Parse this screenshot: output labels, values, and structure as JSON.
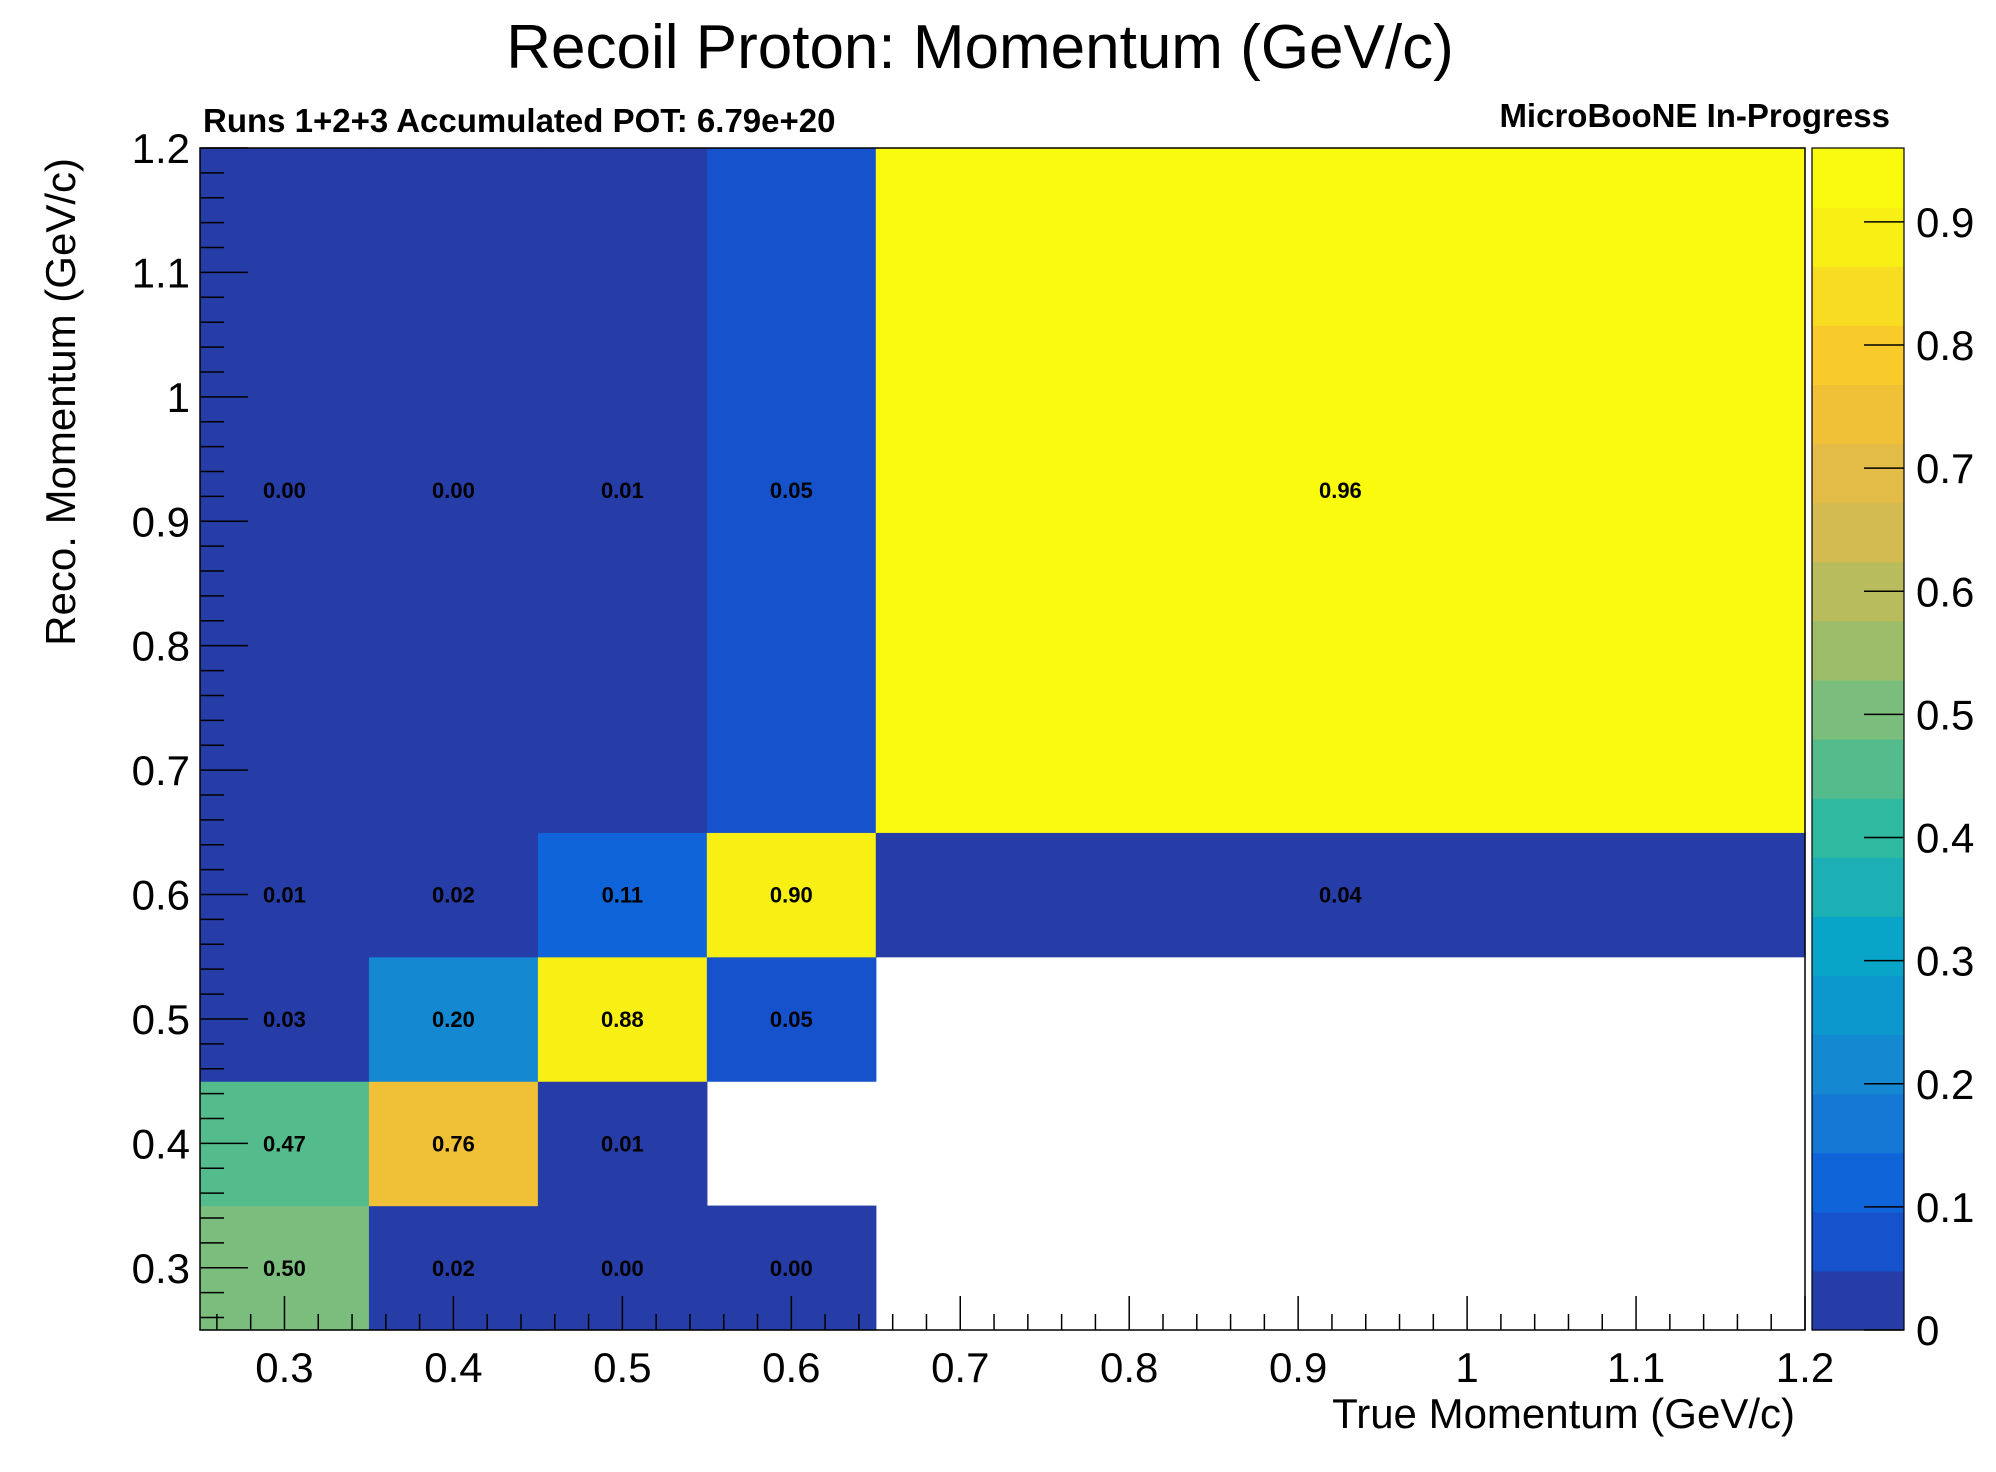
{
  "chart_data": {
    "type": "heatmap",
    "title": "Recoil Proton: Momentum (GeV/c)",
    "subtitle_left": "Runs 1+2+3 Accumulated POT: 6.79e+20",
    "subtitle_right": "MicroBooNE In-Progress",
    "xlabel": "True Momentum (GeV/c)",
    "ylabel": "Reco. Momentum (GeV/c)",
    "x_bin_edges": [
      0.25,
      0.35,
      0.45,
      0.55,
      0.65,
      1.2
    ],
    "y_bin_edges": [
      0.25,
      0.35,
      0.45,
      0.55,
      0.65,
      1.2
    ],
    "xlim": [
      0.25,
      1.2
    ],
    "ylim": [
      0.25,
      1.2
    ],
    "x_ticks": [
      {
        "v": 0.3,
        "label": "0.3"
      },
      {
        "v": 0.4,
        "label": "0.4"
      },
      {
        "v": 0.5,
        "label": "0.5"
      },
      {
        "v": 0.6,
        "label": "0.6"
      },
      {
        "v": 0.7,
        "label": "0.7"
      },
      {
        "v": 0.8,
        "label": "0.8"
      },
      {
        "v": 0.9,
        "label": "0.9"
      },
      {
        "v": 1.0,
        "label": "1"
      },
      {
        "v": 1.1,
        "label": "1.1"
      },
      {
        "v": 1.2,
        "label": "1.2"
      }
    ],
    "y_ticks": [
      {
        "v": 0.3,
        "label": "0.3"
      },
      {
        "v": 0.4,
        "label": "0.4"
      },
      {
        "v": 0.5,
        "label": "0.5"
      },
      {
        "v": 0.6,
        "label": "0.6"
      },
      {
        "v": 0.7,
        "label": "0.7"
      },
      {
        "v": 0.8,
        "label": "0.8"
      },
      {
        "v": 0.9,
        "label": "0.9"
      },
      {
        "v": 1.0,
        "label": "1"
      },
      {
        "v": 1.1,
        "label": "1.1"
      },
      {
        "v": 1.2,
        "label": "1.2"
      }
    ],
    "cells": [
      {
        "xi": 0,
        "yi": 0,
        "value": 0.5,
        "label": "0.50"
      },
      {
        "xi": 1,
        "yi": 0,
        "value": 0.02,
        "label": "0.02"
      },
      {
        "xi": 2,
        "yi": 0,
        "value": 0.0,
        "label": "0.00"
      },
      {
        "xi": 3,
        "yi": 0,
        "value": 0.0,
        "label": "0.00"
      },
      {
        "xi": 0,
        "yi": 1,
        "value": 0.47,
        "label": "0.47"
      },
      {
        "xi": 1,
        "yi": 1,
        "value": 0.76,
        "label": "0.76"
      },
      {
        "xi": 2,
        "yi": 1,
        "value": 0.01,
        "label": "0.01"
      },
      {
        "xi": 0,
        "yi": 2,
        "value": 0.03,
        "label": "0.03"
      },
      {
        "xi": 1,
        "yi": 2,
        "value": 0.2,
        "label": "0.20"
      },
      {
        "xi": 2,
        "yi": 2,
        "value": 0.88,
        "label": "0.88"
      },
      {
        "xi": 3,
        "yi": 2,
        "value": 0.05,
        "label": "0.05"
      },
      {
        "xi": 0,
        "yi": 3,
        "value": 0.01,
        "label": "0.01"
      },
      {
        "xi": 1,
        "yi": 3,
        "value": 0.02,
        "label": "0.02"
      },
      {
        "xi": 2,
        "yi": 3,
        "value": 0.11,
        "label": "0.11"
      },
      {
        "xi": 3,
        "yi": 3,
        "value": 0.9,
        "label": "0.90"
      },
      {
        "xi": 4,
        "yi": 3,
        "value": 0.04,
        "label": "0.04"
      },
      {
        "xi": 0,
        "yi": 4,
        "value": 0.0,
        "label": "0.00"
      },
      {
        "xi": 1,
        "yi": 4,
        "value": 0.0,
        "label": "0.00"
      },
      {
        "xi": 2,
        "yi": 4,
        "value": 0.01,
        "label": "0.01"
      },
      {
        "xi": 3,
        "yi": 4,
        "value": 0.05,
        "label": "0.05"
      },
      {
        "xi": 4,
        "yi": 4,
        "value": 0.96,
        "label": "0.96"
      }
    ],
    "colorbar": {
      "range": [
        0,
        0.96
      ],
      "ticks": [
        {
          "v": 0,
          "label": "0"
        },
        {
          "v": 0.1,
          "label": "0.1"
        },
        {
          "v": 0.2,
          "label": "0.2"
        },
        {
          "v": 0.3,
          "label": "0.3"
        },
        {
          "v": 0.4,
          "label": "0.4"
        },
        {
          "v": 0.5,
          "label": "0.5"
        },
        {
          "v": 0.6,
          "label": "0.6"
        },
        {
          "v": 0.7,
          "label": "0.7"
        },
        {
          "v": 0.8,
          "label": "0.8"
        },
        {
          "v": 0.9,
          "label": "0.9"
        }
      ],
      "colors": [
        "#263ca6",
        "#1552cc",
        "#0f64da",
        "#1478d4",
        "#1489d1",
        "#0c98cc",
        "#08a5c8",
        "#1cb0b4",
        "#2eb9a0",
        "#54bc8c",
        "#7bbd7c",
        "#9dbd6a",
        "#b8bc5c",
        "#d3bb52",
        "#e3bc48",
        "#f0c036",
        "#f8ca2a",
        "#f8dc22",
        "#f8f014",
        "#fafa0e"
      ]
    }
  }
}
